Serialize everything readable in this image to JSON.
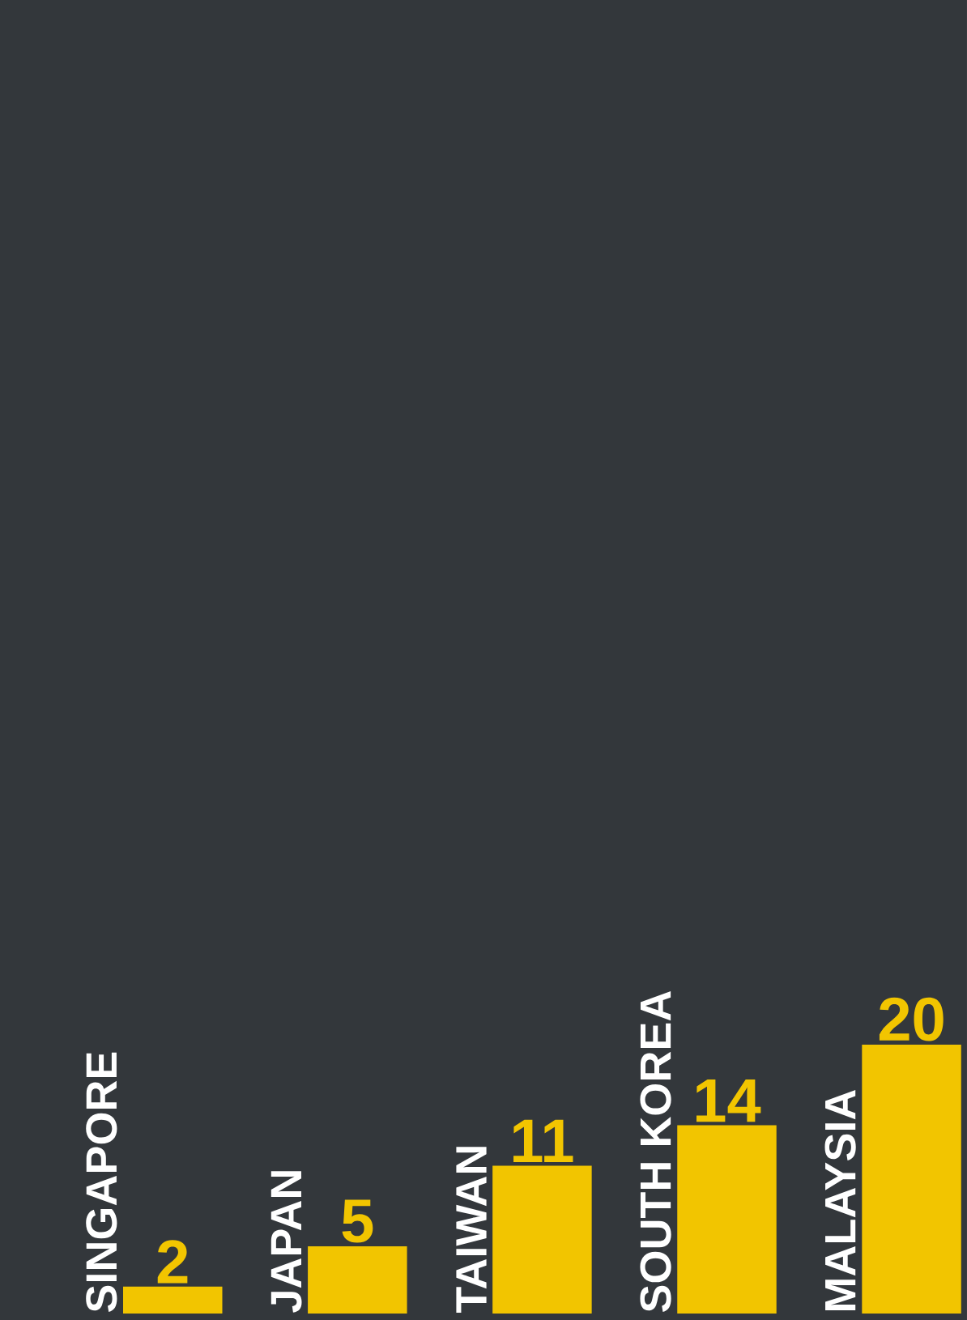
{
  "chart_data": {
    "type": "bar",
    "categories": [
      "SINGAPORE",
      "JAPAN",
      "TAIWAN",
      "SOUTH KOREA",
      "MALAYSIA"
    ],
    "values": [
      2,
      5,
      11,
      14,
      20
    ],
    "color": "#f2c500",
    "data_labels": true
  }
}
